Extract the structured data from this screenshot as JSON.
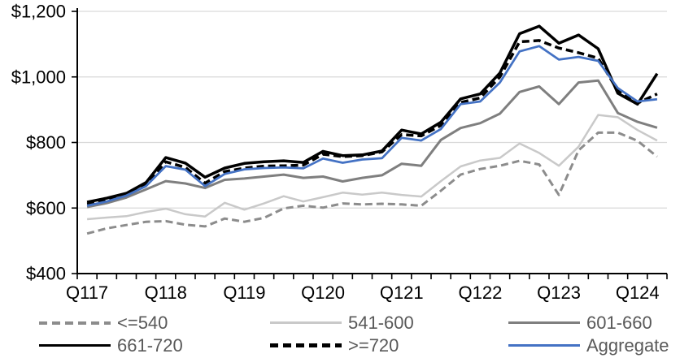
{
  "chart_data": {
    "type": "line",
    "title": "",
    "xlabel": "",
    "ylabel": "",
    "categories": [
      "Q117",
      "Q217",
      "Q317",
      "Q417",
      "Q118",
      "Q218",
      "Q318",
      "Q418",
      "Q119",
      "Q219",
      "Q319",
      "Q419",
      "Q120",
      "Q220",
      "Q320",
      "Q420",
      "Q121",
      "Q221",
      "Q321",
      "Q421",
      "Q122",
      "Q222",
      "Q322",
      "Q422",
      "Q123",
      "Q223",
      "Q323",
      "Q423",
      "Q124",
      "Q224"
    ],
    "x_axis_labels_shown": [
      "Q117",
      "Q118",
      "Q119",
      "Q120",
      "Q121",
      "Q122",
      "Q123",
      "Q124"
    ],
    "x_label_every": 4,
    "ylim": [
      400,
      1200
    ],
    "y_ticks": [
      400,
      600,
      800,
      1000,
      1200
    ],
    "y_tick_labels": [
      "$400",
      "$600",
      "$800",
      "$1,000",
      "$1,200"
    ],
    "grid": "horizontal",
    "legend_position": "bottom",
    "series": [
      {
        "name": "<=540",
        "color": "#8C8C8C",
        "dash": true,
        "width": 3,
        "values": [
          522,
          538,
          548,
          558,
          560,
          549,
          544,
          568,
          558,
          570,
          599,
          607,
          601,
          614,
          611,
          613,
          611,
          607,
          653,
          702,
          719,
          729,
          744,
          733,
          640,
          776,
          830,
          830,
          805,
          757
        ]
      },
      {
        "name": "541-600",
        "color": "#C9C9C9",
        "dash": false,
        "width": 2.5,
        "values": [
          566,
          571,
          575,
          588,
          598,
          581,
          574,
          616,
          595,
          614,
          636,
          620,
          633,
          647,
          641,
          647,
          640,
          635,
          682,
          727,
          745,
          753,
          797,
          768,
          729,
          787,
          884,
          877,
          838,
          806
        ]
      },
      {
        "name": "601-660",
        "color": "#7F7F7F",
        "dash": false,
        "width": 3,
        "values": [
          603,
          615,
          632,
          657,
          682,
          675,
          661,
          686,
          690,
          696,
          702,
          692,
          696,
          681,
          692,
          700,
          735,
          729,
          808,
          844,
          859,
          888,
          954,
          971,
          917,
          983,
          989,
          890,
          863,
          845
        ]
      },
      {
        "name": "661-720",
        "color": "#000000",
        "dash": false,
        "width": 3.5,
        "values": [
          618,
          630,
          645,
          678,
          754,
          737,
          694,
          722,
          736,
          741,
          744,
          739,
          773,
          760,
          762,
          774,
          838,
          826,
          862,
          933,
          948,
          1012,
          1132,
          1155,
          1103,
          1128,
          1086,
          950,
          917,
          1010
        ]
      },
      {
        "name": ">=720",
        "color": "#000000",
        "dash": true,
        "width": 3.5,
        "values": [
          612,
          624,
          640,
          671,
          741,
          724,
          676,
          711,
          722,
          728,
          729,
          731,
          764,
          757,
          760,
          771,
          824,
          820,
          852,
          922,
          936,
          1000,
          1107,
          1111,
          1088,
          1074,
          1057,
          958,
          920,
          948
        ]
      },
      {
        "name": "Aggregate",
        "color": "#4472C4",
        "dash": false,
        "width": 2.75,
        "values": [
          607,
          620,
          638,
          667,
          728,
          717,
          667,
          704,
          718,
          722,
          724,
          721,
          751,
          738,
          748,
          752,
          814,
          806,
          841,
          917,
          925,
          983,
          1078,
          1094,
          1053,
          1061,
          1049,
          966,
          925,
          932
        ]
      }
    ],
    "legend_rows": [
      [
        "<=540",
        "541-600",
        "601-660"
      ],
      [
        "661-720",
        ">=720",
        "Aggregate"
      ]
    ],
    "colors": {
      "gridline": "#D9D9D9",
      "axis": "#000000",
      "axis_label": "#000000",
      "legend_text": "#595959",
      "background": "#FFFFFF"
    }
  }
}
